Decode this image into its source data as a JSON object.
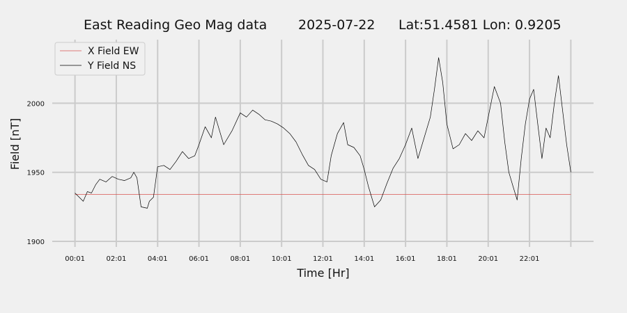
{
  "chart_data": {
    "type": "line",
    "title_parts": {
      "station": "East Reading Geo Mag data",
      "date": "2025-07-22",
      "location": "Lat:51.4581  Lon: 0.9205"
    },
    "xlabel": "Time  [Hr]",
    "ylabel": "Field  [nT]",
    "x_unit": "hours",
    "xlim": [
      -1.1,
      25.1
    ],
    "ylim": [
      1896,
      2046
    ],
    "x_ticks": [
      {
        "x": 0,
        "label": "00:01"
      },
      {
        "x": 2,
        "label": "02:01"
      },
      {
        "x": 4,
        "label": "04:01"
      },
      {
        "x": 6,
        "label": "06:01"
      },
      {
        "x": 8,
        "label": "08:01"
      },
      {
        "x": 10,
        "label": "10:01"
      },
      {
        "x": 12,
        "label": "12:01"
      },
      {
        "x": 14,
        "label": "14:01"
      },
      {
        "x": 16,
        "label": "16:01"
      },
      {
        "x": 18,
        "label": "18:01"
      },
      {
        "x": 20,
        "label": "20:01"
      },
      {
        "x": 22,
        "label": "22:01"
      },
      {
        "x": 24,
        "label": ""
      }
    ],
    "y_ticks": [
      1900,
      1950,
      2000
    ],
    "grid": true,
    "legend_position": "upper-left",
    "series": [
      {
        "name": "X Field EW",
        "color": "#d9534f",
        "x": [
          0,
          24
        ],
        "y": [
          1934,
          1934
        ]
      },
      {
        "name": "Y Field NS",
        "color": "#000000",
        "x": [
          0,
          0.2,
          0.4,
          0.6,
          0.8,
          1.0,
          1.2,
          1.5,
          1.8,
          2.1,
          2.4,
          2.7,
          2.85,
          3.0,
          3.2,
          3.5,
          3.6,
          3.8,
          4.0,
          4.3,
          4.6,
          4.9,
          5.2,
          5.5,
          5.8,
          6.0,
          6.3,
          6.6,
          6.8,
          7.2,
          7.6,
          8.0,
          8.3,
          8.6,
          8.9,
          9.2,
          9.5,
          9.8,
          10.1,
          10.4,
          10.7,
          11.0,
          11.3,
          11.6,
          11.9,
          12.2,
          12.4,
          12.7,
          13.0,
          13.2,
          13.5,
          13.8,
          14.0,
          14.2,
          14.5,
          14.8,
          15.1,
          15.4,
          15.7,
          16.0,
          16.3,
          16.6,
          16.9,
          17.2,
          17.4,
          17.6,
          17.8,
          18.0,
          18.3,
          18.6,
          18.9,
          19.2,
          19.5,
          19.8,
          20.0,
          20.3,
          20.6,
          20.8,
          21.0,
          21.2,
          21.4,
          21.6,
          21.8,
          22.0,
          22.2,
          22.4,
          22.6,
          22.8,
          23.0,
          23.2,
          23.4,
          23.6,
          23.8,
          24.0
        ],
        "y": [
          1935,
          1932,
          1929,
          1936,
          1935,
          1941,
          1945,
          1943,
          1947,
          1945,
          1944,
          1946,
          1950,
          1946,
          1925,
          1924,
          1929,
          1932,
          1954,
          1955,
          1952,
          1958,
          1965,
          1960,
          1962,
          1970,
          1983,
          1975,
          1990,
          1970,
          1980,
          1993,
          1990,
          1995,
          1992,
          1988,
          1987,
          1985,
          1982,
          1978,
          1972,
          1963,
          1955,
          1952,
          1945,
          1943,
          1962,
          1978,
          1986,
          1970,
          1968,
          1962,
          1952,
          1940,
          1925,
          1930,
          1942,
          1953,
          1960,
          1970,
          1982,
          1960,
          1975,
          1990,
          2010,
          2033,
          2015,
          1985,
          1967,
          1970,
          1978,
          1973,
          1980,
          1975,
          1990,
          2012,
          2000,
          1972,
          1950,
          1940,
          1930,
          1960,
          1985,
          2003,
          2010,
          1985,
          1960,
          1982,
          1975,
          2000,
          2020,
          1995,
          1970,
          1950
        ]
      }
    ]
  }
}
